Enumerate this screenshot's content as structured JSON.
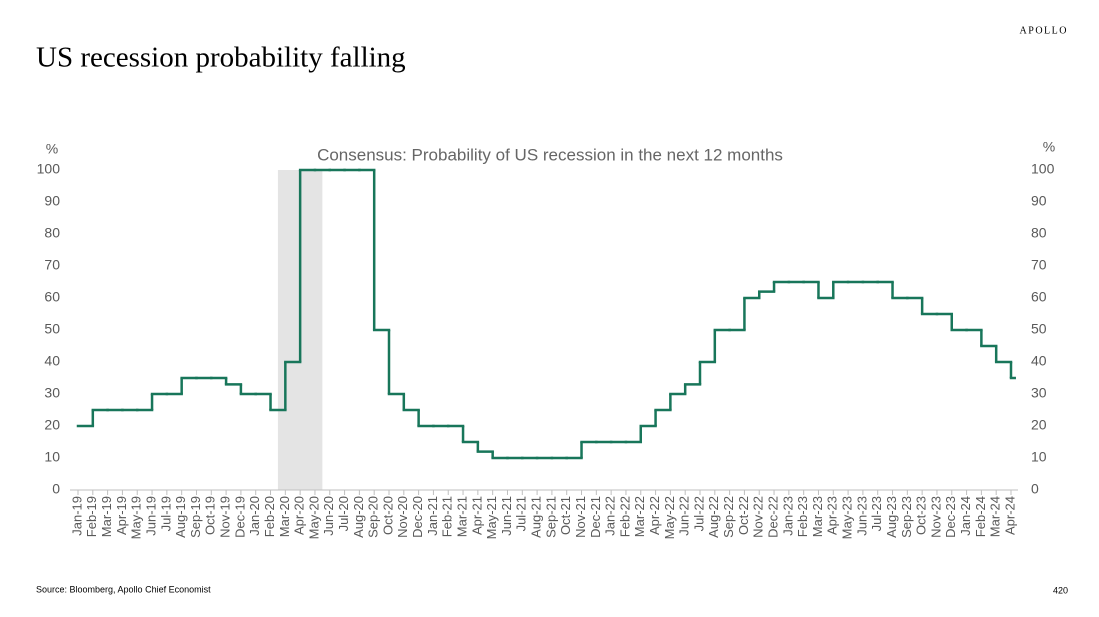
{
  "chart_data": {
    "type": "step-line",
    "title": "US recession probability falling",
    "subtitle": "Consensus: Probability of US recession in the next 12  months",
    "brand": "APOLLO",
    "source": "Source: Bloomberg, Apollo Chief Economist",
    "page_number": "420",
    "y_unit": "%",
    "y2_unit": "%",
    "categories": [
      "Jan-19",
      "Feb-19",
      "Mar-19",
      "Apr-19",
      "May-19",
      "Jun-19",
      "Jul-19",
      "Aug-19",
      "Sep-19",
      "Oct-19",
      "Nov-19",
      "Dec-19",
      "Jan-20",
      "Feb-20",
      "Mar-20",
      "Apr-20",
      "May-20",
      "Jun-20",
      "Jul-20",
      "Aug-20",
      "Sep-20",
      "Oct-20",
      "Nov-20",
      "Dec-20",
      "Jan-21",
      "Feb-21",
      "Mar-21",
      "Apr-21",
      "May-21",
      "Jun-21",
      "Jul-21",
      "Aug-21",
      "Sep-21",
      "Oct-21",
      "Nov-21",
      "Dec-21",
      "Jan-22",
      "Feb-22",
      "Mar-22",
      "Apr-22",
      "May-22",
      "Jun-22",
      "Jul-22",
      "Aug-22",
      "Sep-22",
      "Oct-22",
      "Nov-22",
      "Dec-22",
      "Jan-23",
      "Feb-23",
      "Mar-23",
      "Apr-23",
      "May-23",
      "Jun-23",
      "Jul-23",
      "Aug-23",
      "Sep-23",
      "Oct-23",
      "Nov-23",
      "Dec-23",
      "Jan-24",
      "Feb-24",
      "Mar-24",
      "Apr-24"
    ],
    "values": [
      20,
      25,
      25,
      25,
      25,
      30,
      30,
      35,
      35,
      35,
      33,
      30,
      30,
      25,
      40,
      100,
      100,
      100,
      100,
      100,
      50,
      30,
      25,
      20,
      20,
      20,
      15,
      12,
      10,
      10,
      10,
      10,
      10,
      10,
      15,
      15,
      15,
      15,
      20,
      25,
      30,
      33,
      40,
      50,
      50,
      60,
      62,
      65,
      65,
      65,
      60,
      65,
      65,
      65,
      65,
      60,
      60,
      55,
      55,
      50,
      50,
      45,
      40,
      35
    ],
    "color": "#18765a",
    "recession": [
      "Mar-20",
      "May-20"
    ],
    "recession_color": "#e4e4e4",
    "ylim": [
      0,
      100
    ],
    "yticks": [
      0,
      10,
      20,
      30,
      40,
      50,
      60,
      70,
      80,
      90,
      100
    ],
    "y2lim": [
      0,
      100
    ],
    "y2ticks": [
      0,
      10,
      20,
      30,
      40,
      50,
      60,
      70,
      80,
      90,
      100
    ]
  }
}
